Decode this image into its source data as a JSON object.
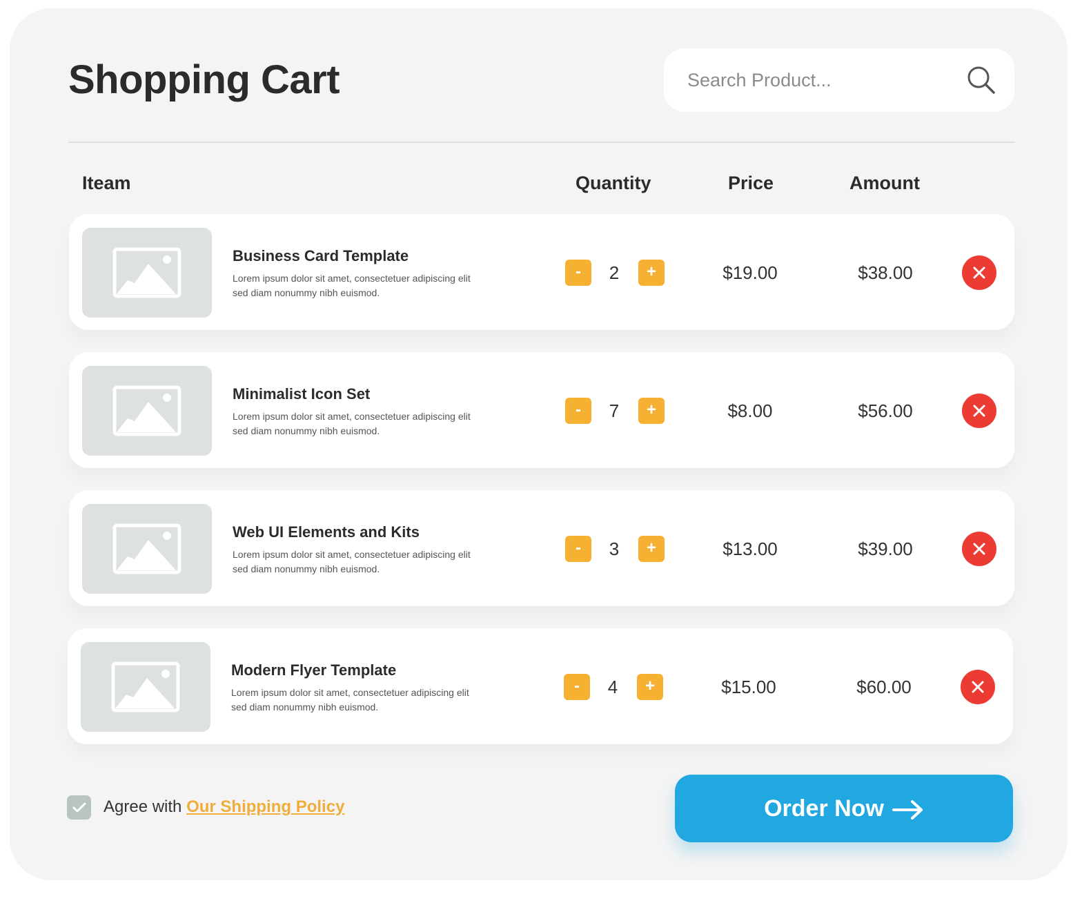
{
  "header": {
    "title": "Shopping Cart",
    "search_placeholder": "Search Product..."
  },
  "columns": {
    "item": "Iteam",
    "quantity": "Quantity",
    "price": "Price",
    "amount": "Amount"
  },
  "items": [
    {
      "name": "Business Card Template",
      "desc": "Lorem ipsum dolor sit amet, consectetuer adipiscing elit sed diam nonummy nibh euismod.",
      "qty": "2",
      "price": "$19.00",
      "amount": "$38.00"
    },
    {
      "name": "Minimalist Icon Set",
      "desc": "Lorem ipsum dolor sit amet, consectetuer adipiscing elit sed diam nonummy nibh euismod.",
      "qty": "7",
      "price": "$8.00",
      "amount": "$56.00"
    },
    {
      "name": "Web UI Elements and Kits",
      "desc": "Lorem ipsum dolor sit amet, consectetuer adipiscing elit sed diam nonummy nibh euismod.",
      "qty": "3",
      "price": "$13.00",
      "amount": "$39.00"
    },
    {
      "name": "Modern Flyer Template",
      "desc": "Lorem ipsum dolor sit amet, consectetuer adipiscing elit sed diam nonummy nibh euismod.",
      "qty": "4",
      "price": "$15.00",
      "amount": "$60.00"
    }
  ],
  "controls": {
    "minus": "-",
    "plus": "+"
  },
  "footer": {
    "agree_text": "Agree with ",
    "policy_link": "Our Shipping Policy",
    "agree_checked": true,
    "order_label": "Order Now"
  },
  "colors": {
    "accent": "#22a8e0",
    "quantity_button": "#f6b133",
    "delete": "#eb3b33",
    "link": "#f0ad3b"
  }
}
